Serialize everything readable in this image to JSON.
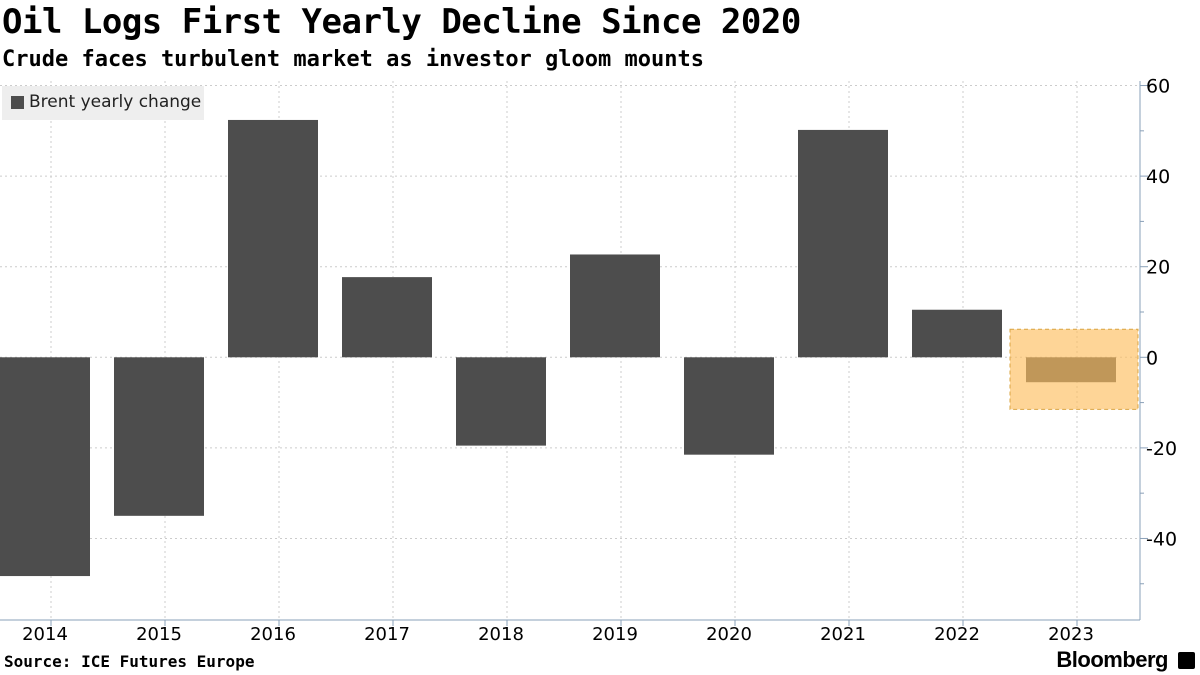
{
  "header": {
    "title": "Oil Logs First Yearly Decline Since 2020",
    "subtitle": "Crude faces turbulent market as investor gloom mounts"
  },
  "legend": {
    "label": "Brent yearly change"
  },
  "footer": {
    "source": "Source: ICE Futures Europe",
    "brand": "Bloomberg"
  },
  "colors": {
    "bar": "#4d4d4d",
    "highlight": "#fdbf5f",
    "axis": "#8aa0b8",
    "grid": "#cccccc"
  },
  "chart_data": {
    "type": "bar",
    "title": "Oil Logs First Yearly Decline Since 2020",
    "subtitle": "Crude faces turbulent market as investor gloom mounts",
    "xlabel": "",
    "ylabel": "",
    "categories": [
      "2014",
      "2015",
      "2016",
      "2017",
      "2018",
      "2019",
      "2020",
      "2021",
      "2022",
      "2023"
    ],
    "series": [
      {
        "name": "Brent yearly change",
        "values": [
          -48.3,
          -35.0,
          52.4,
          17.7,
          -19.5,
          22.7,
          -21.5,
          50.2,
          10.5,
          -5.5
        ]
      }
    ],
    "ylim": [
      -58,
      61
    ],
    "yticks": [
      60,
      40,
      20,
      0,
      -20,
      -40
    ],
    "ytick_labels": [
      "60",
      "40",
      "20",
      "0",
      "-20",
      "-40"
    ],
    "grid": true,
    "legend_position": "top-left",
    "axis_side": "right",
    "highlight": {
      "category": "2023",
      "y_range": [
        -11.5,
        6.2
      ]
    }
  }
}
